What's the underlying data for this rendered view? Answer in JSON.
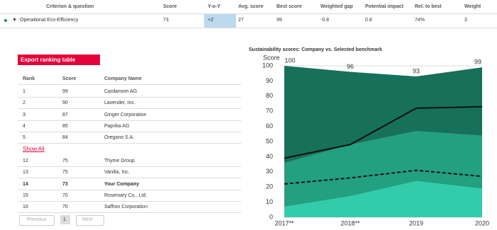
{
  "header": {
    "columns": [
      "Criterion & question",
      "Score",
      "Y-o-Y",
      "Avg. score",
      "Best score",
      "Weighted gap",
      "Potential impact",
      "Rel. to best",
      "Weight"
    ]
  },
  "criterion_row": {
    "name": "Operational Eco-Efficiency",
    "cells": [
      "73",
      "+2",
      "27",
      "99",
      "-0.8",
      "0.8",
      "74%",
      "3"
    ]
  },
  "export_button": "Export ranking table",
  "ranking": {
    "columns": [
      "Rank",
      "Score",
      "Company Name"
    ],
    "rows": [
      [
        "1",
        "99",
        "Cardamom AG"
      ],
      [
        "2",
        "90",
        "Lavender, Inc."
      ],
      [
        "3",
        "87",
        "Ginger Corporation"
      ],
      [
        "4",
        "85",
        "Paprika AG"
      ],
      [
        "5",
        "84",
        "Oregano S.A."
      ]
    ],
    "show_all": "Show All",
    "rows_after": [
      [
        "12",
        "75",
        "Thyme Group"
      ],
      [
        "13",
        "75",
        "Vanilla, Inc."
      ],
      [
        "14",
        "73",
        "Your Company"
      ],
      [
        "15",
        "70",
        "Rosemary Co., Ltd."
      ],
      [
        "16",
        "70",
        "Saffron Corporation"
      ]
    ]
  },
  "pagination": {
    "previous": "Previous",
    "page": "1",
    "next": "Next"
  },
  "chart_data": {
    "type": "line",
    "title": "Sustainability scores: Company vs. Selected benchmark",
    "y_label": "Score",
    "categories": [
      "2017**",
      "2018**",
      "2019",
      "2020"
    ],
    "series": [
      {
        "kind": "area",
        "color": "#17705a",
        "values": [
          100,
          96,
          93,
          99
        ],
        "data_labels": true
      },
      {
        "kind": "area",
        "color": "#23a07f",
        "values": [
          36,
          48,
          57,
          54
        ]
      },
      {
        "kind": "area",
        "color": "#33ccaa",
        "values": [
          7,
          14,
          24,
          19
        ]
      },
      {
        "kind": "line",
        "color": "#111111",
        "values": [
          39,
          48,
          72,
          73
        ]
      },
      {
        "kind": "line",
        "color": "#111111",
        "dashed": true,
        "values": [
          22,
          26,
          31,
          27
        ]
      }
    ],
    "ylim": [
      0,
      100
    ],
    "yticks": [
      0,
      10,
      20,
      30,
      40,
      50,
      60,
      70,
      80,
      90,
      100
    ],
    "grid": true
  }
}
